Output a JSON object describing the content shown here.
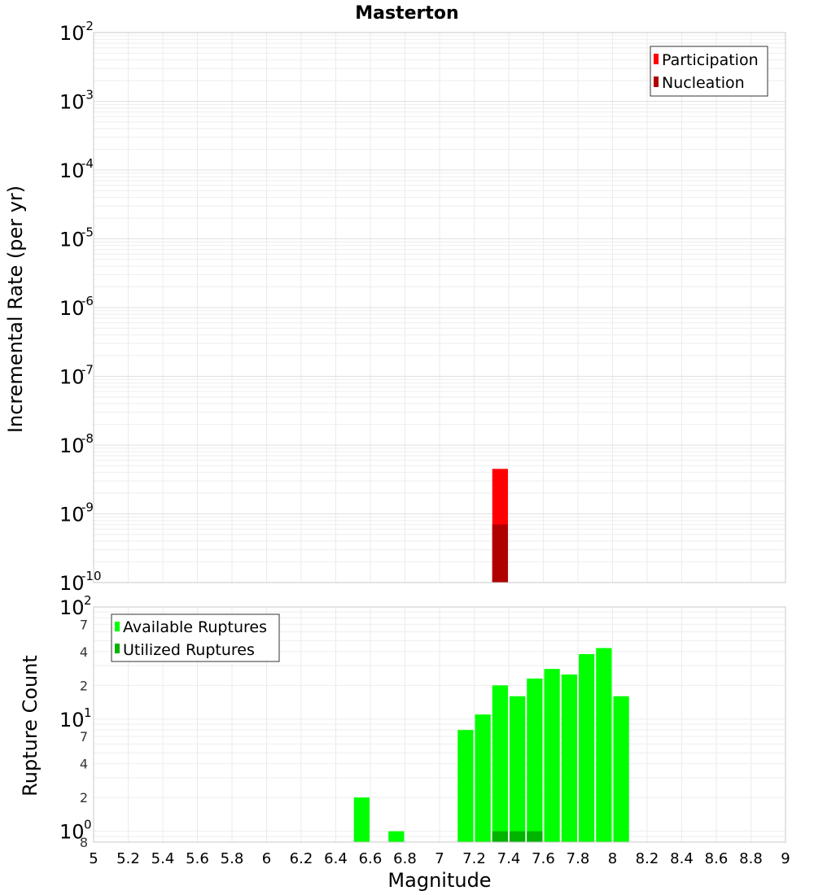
{
  "chart_data": [
    {
      "type": "bar",
      "title": "Masterton",
      "ylabel": "Incremental Rate (per yr)",
      "yscale": "log",
      "ylim": [
        1e-10,
        0.01
      ],
      "xlim": [
        5,
        9
      ],
      "bin_width": 0.1,
      "y_ticks": [
        {
          "base": "10",
          "exp": "-10"
        },
        {
          "base": "10",
          "exp": "-9"
        },
        {
          "base": "10",
          "exp": "-8"
        },
        {
          "base": "10",
          "exp": "-7"
        },
        {
          "base": "10",
          "exp": "-6"
        },
        {
          "base": "10",
          "exp": "-5"
        },
        {
          "base": "10",
          "exp": "-4"
        },
        {
          "base": "10",
          "exp": "-3"
        },
        {
          "base": "10",
          "exp": "-2"
        }
      ],
      "legend": {
        "position": "top-right"
      },
      "series": [
        {
          "name": "Participation",
          "color": "#ff0000",
          "x": [
            7.35
          ],
          "values": [
            4.5e-09
          ]
        },
        {
          "name": "Nucleation",
          "color": "#b00000",
          "x": [
            7.35
          ],
          "values": [
            7e-10
          ]
        }
      ],
      "grid": true
    },
    {
      "type": "bar",
      "ylabel": "Rupture Count",
      "yscale": "log",
      "ylim": [
        0.8,
        100
      ],
      "xlim": [
        5,
        9
      ],
      "bin_width": 0.1,
      "xlabel": "Magnitude",
      "x_ticks": [
        "5",
        "5.2",
        "5.4",
        "5.6",
        "5.8",
        "6",
        "6.2",
        "6.4",
        "6.6",
        "6.8",
        "7",
        "7.2",
        "7.4",
        "7.6",
        "7.8",
        "8",
        "8.2",
        "8.4",
        "8.6",
        "8.8",
        "9"
      ],
      "y_major_ticks": [
        {
          "base": "10",
          "exp": "0",
          "value": 1
        },
        {
          "base": "10",
          "exp": "1",
          "value": 10
        },
        {
          "base": "10",
          "exp": "2",
          "value": 100
        }
      ],
      "y_minor_ticks": [
        {
          "label": "8",
          "value": 0.8
        },
        {
          "label": "2",
          "value": 2
        },
        {
          "label": "4",
          "value": 4
        },
        {
          "label": "7",
          "value": 7
        },
        {
          "label": "2",
          "value": 20
        },
        {
          "label": "4",
          "value": 40
        },
        {
          "label": "7",
          "value": 70
        }
      ],
      "legend": {
        "position": "top-left"
      },
      "series": [
        {
          "name": "Available Ruptures",
          "color": "#00ff00",
          "x": [
            6.55,
            6.75,
            7.15,
            7.25,
            7.35,
            7.45,
            7.55,
            7.65,
            7.75,
            7.85,
            7.95,
            8.05
          ],
          "values": [
            2,
            1,
            8,
            11,
            20,
            16,
            23,
            28,
            25,
            38,
            43,
            16
          ]
        },
        {
          "name": "Utilized Ruptures",
          "color": "#00b400",
          "x": [
            7.35,
            7.45,
            7.55
          ],
          "values": [
            1,
            1,
            1
          ]
        }
      ],
      "grid": true
    }
  ]
}
